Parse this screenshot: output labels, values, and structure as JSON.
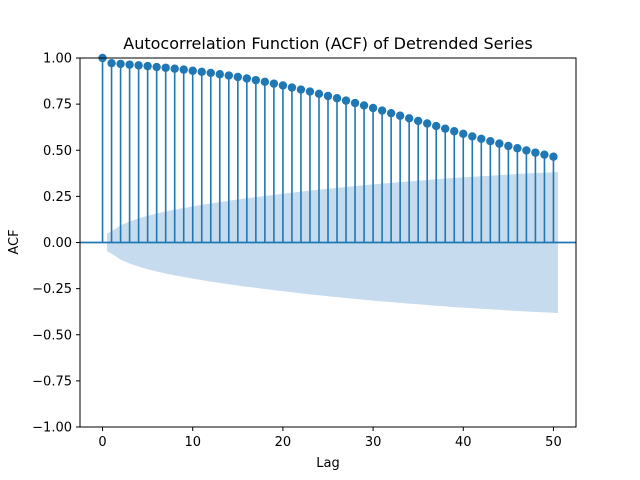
{
  "chart_data": {
    "type": "scatter",
    "subtype": "stem",
    "title": "Autocorrelation Function (ACF) of Detrended Series",
    "xlabel": "Lag",
    "ylabel": "ACF",
    "xlim": [
      -2.5,
      52.5
    ],
    "ylim": [
      -1.0,
      1.0
    ],
    "x_ticks": [
      0,
      10,
      20,
      30,
      40,
      50
    ],
    "x_tick_labels": [
      "0",
      "10",
      "20",
      "30",
      "40",
      "50"
    ],
    "y_ticks": [
      1.0,
      0.75,
      0.5,
      0.25,
      0.0,
      -0.25,
      -0.5,
      -0.75,
      -1.0
    ],
    "y_tick_labels": [
      "1.00",
      "0.75",
      "0.50",
      "0.25",
      "0.00",
      "−0.25",
      "−0.50",
      "−0.75",
      "−1.00"
    ],
    "grid": false,
    "legend": "none",
    "colors": {
      "stem": "#1f77b4",
      "confidence_band": "#c6dcee",
      "axes": "#000000"
    },
    "lags": [
      0,
      1,
      2,
      3,
      4,
      5,
      6,
      7,
      8,
      9,
      10,
      11,
      12,
      13,
      14,
      15,
      16,
      17,
      18,
      19,
      20,
      21,
      22,
      23,
      24,
      25,
      26,
      27,
      28,
      29,
      30,
      31,
      32,
      33,
      34,
      35,
      36,
      37,
      38,
      39,
      40,
      41,
      42,
      43,
      44,
      45,
      46,
      47,
      48,
      49,
      50
    ],
    "acf": [
      1.0,
      0.972,
      0.968,
      0.964,
      0.96,
      0.956,
      0.951,
      0.947,
      0.942,
      0.937,
      0.931,
      0.925,
      0.919,
      0.912,
      0.905,
      0.897,
      0.889,
      0.88,
      0.871,
      0.861,
      0.851,
      0.84,
      0.829,
      0.818,
      0.806,
      0.794,
      0.782,
      0.769,
      0.756,
      0.743,
      0.729,
      0.715,
      0.701,
      0.687,
      0.673,
      0.659,
      0.645,
      0.631,
      0.617,
      0.603,
      0.589,
      0.575,
      0.562,
      0.549,
      0.536,
      0.523,
      0.511,
      0.499,
      0.487,
      0.476,
      0.465
    ],
    "confidence_band": {
      "lags": [
        0.5,
        1,
        2,
        3,
        4,
        5,
        6,
        7,
        8,
        9,
        10,
        11,
        12,
        13,
        14,
        15,
        16,
        17,
        18,
        19,
        20,
        21,
        22,
        23,
        24,
        25,
        26,
        27,
        28,
        29,
        30,
        31,
        32,
        33,
        34,
        35,
        36,
        37,
        38,
        39,
        40,
        41,
        42,
        43,
        44,
        45,
        46,
        47,
        48,
        49,
        50,
        50.5
      ],
      "upper": [
        0.048,
        0.06,
        0.093,
        0.114,
        0.131,
        0.145,
        0.157,
        0.168,
        0.178,
        0.187,
        0.196,
        0.204,
        0.212,
        0.219,
        0.226,
        0.233,
        0.24,
        0.246,
        0.252,
        0.258,
        0.264,
        0.27,
        0.276,
        0.281,
        0.286,
        0.291,
        0.296,
        0.301,
        0.306,
        0.31,
        0.315,
        0.319,
        0.323,
        0.327,
        0.331,
        0.335,
        0.339,
        0.343,
        0.346,
        0.35,
        0.353,
        0.356,
        0.359,
        0.362,
        0.365,
        0.368,
        0.371,
        0.374,
        0.377,
        0.379,
        0.381,
        0.382
      ]
    }
  }
}
